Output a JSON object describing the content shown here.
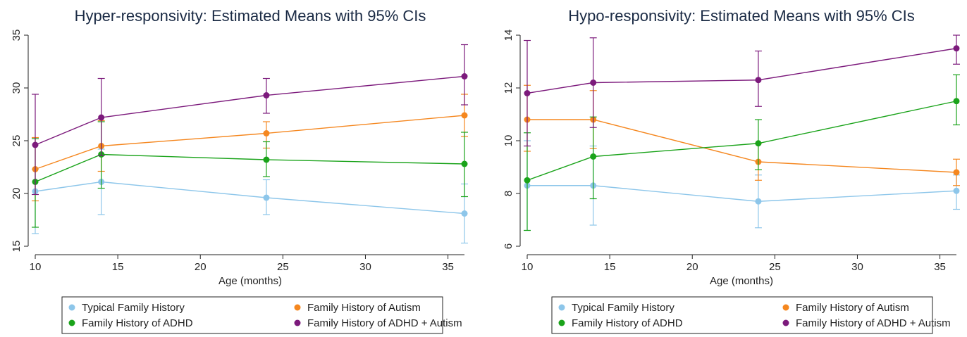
{
  "chart_data": [
    {
      "type": "line",
      "title": "Hyper-responsivity: Estimated Means with 95% CIs",
      "xlabel": "Age (months)",
      "ylabel": "",
      "xlim": [
        10,
        36
      ],
      "ylim": [
        15,
        35
      ],
      "xticks": [
        10,
        15,
        20,
        25,
        30,
        35
      ],
      "yticks": [
        15,
        20,
        25,
        30,
        35
      ],
      "x": [
        10,
        14,
        24,
        36
      ],
      "grid": false,
      "legend_position": "bottom",
      "series": [
        {
          "name": "Typical Family History",
          "color": "#8dc6ea",
          "values": [
            20.2,
            21.1,
            19.6,
            18.1
          ],
          "ci_low": [
            16.2,
            18.0,
            18.0,
            15.3
          ],
          "ci_high": [
            22.3,
            24.2,
            21.3,
            20.9
          ]
        },
        {
          "name": "Family History of Autism",
          "color": "#f5871f",
          "values": [
            22.3,
            24.5,
            25.7,
            27.4
          ],
          "ci_low": [
            19.3,
            22.1,
            24.3,
            25.4
          ],
          "ci_high": [
            25.3,
            26.9,
            26.8,
            29.4
          ]
        },
        {
          "name": "Family History of ADHD",
          "color": "#1aa31a",
          "values": [
            21.1,
            23.7,
            23.2,
            22.8
          ],
          "ci_low": [
            16.8,
            20.5,
            21.6,
            19.7
          ],
          "ci_high": [
            25.2,
            26.8,
            24.9,
            25.8
          ]
        },
        {
          "name": "Family History of ADHD + Autism",
          "color": "#7c1a7c",
          "values": [
            24.6,
            27.2,
            29.3,
            31.1
          ],
          "ci_low": [
            19.9,
            23.6,
            27.6,
            28.4
          ],
          "ci_high": [
            29.4,
            30.9,
            30.9,
            34.1
          ]
        }
      ]
    },
    {
      "type": "line",
      "title": "Hypo-responsivity: Estimated Means with 95% CIs",
      "xlabel": "Age (months)",
      "ylabel": "",
      "xlim": [
        10,
        36
      ],
      "ylim": [
        6,
        14
      ],
      "xticks": [
        10,
        15,
        20,
        25,
        30,
        35
      ],
      "yticks": [
        6,
        8,
        10,
        12,
        14
      ],
      "x": [
        10,
        14,
        24,
        36
      ],
      "grid": false,
      "legend_position": "bottom",
      "series": [
        {
          "name": "Typical Family History",
          "color": "#8dc6ea",
          "values": [
            8.3,
            8.3,
            7.7,
            8.1
          ],
          "ci_low": [
            6.6,
            6.8,
            6.7,
            7.4
          ],
          "ci_high": [
            10.0,
            9.8,
            8.7,
            8.7
          ]
        },
        {
          "name": "Family History of Autism",
          "color": "#f5871f",
          "values": [
            10.8,
            10.8,
            9.2,
            8.8
          ],
          "ci_low": [
            9.6,
            9.7,
            8.5,
            8.3
          ],
          "ci_high": [
            12.1,
            11.9,
            9.9,
            9.3
          ]
        },
        {
          "name": "Family History of ADHD",
          "color": "#1aa31a",
          "values": [
            8.5,
            9.4,
            9.9,
            11.5
          ],
          "ci_low": [
            6.6,
            7.8,
            8.9,
            10.6
          ],
          "ci_high": [
            10.3,
            10.9,
            10.8,
            12.5
          ]
        },
        {
          "name": "Family History of ADHD + Autism",
          "color": "#7c1a7c",
          "values": [
            11.8,
            12.2,
            12.3,
            13.5
          ],
          "ci_low": [
            9.8,
            10.5,
            11.3,
            12.9
          ],
          "ci_high": [
            13.8,
            13.9,
            13.4,
            14.0
          ]
        }
      ]
    }
  ]
}
